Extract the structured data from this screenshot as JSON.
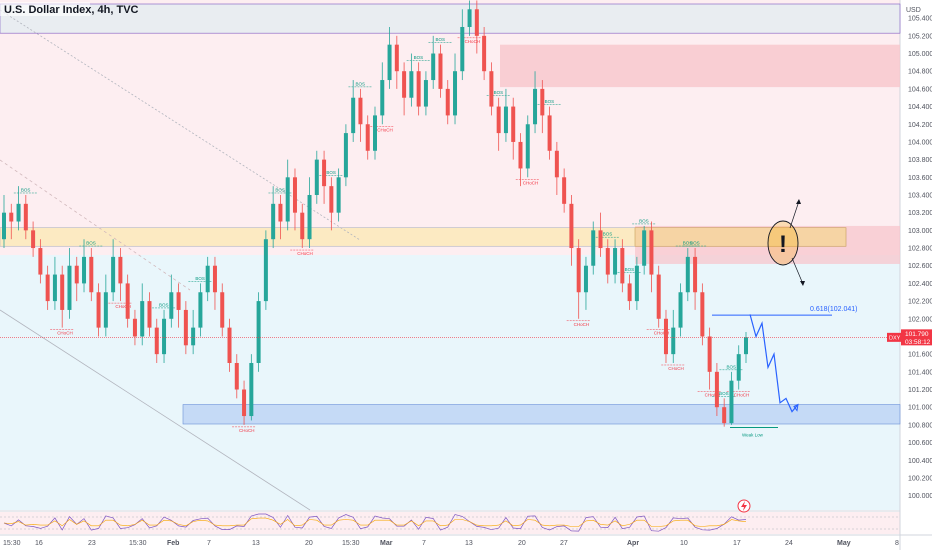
{
  "header": {
    "title": "U.S. Dollar Index, 4h, TVC"
  },
  "chart_data": {
    "type": "candlestick",
    "title": "U.S. Dollar Index, 4h, TVC",
    "currency": "USD",
    "symbol": "DXY",
    "y_ticks": [
      105.4,
      105.2,
      105.0,
      104.8,
      104.6,
      104.4,
      104.2,
      104.0,
      103.8,
      103.6,
      103.4,
      103.2,
      103.0,
      102.8,
      102.6,
      102.4,
      102.2,
      102.0,
      101.8,
      101.6,
      101.4,
      101.2,
      101.0,
      100.8,
      100.6,
      100.4,
      100.2,
      100.0
    ],
    "y_tick_labels": [
      "105.400",
      "105.200",
      "105.000",
      "104.800",
      "104.600",
      "104.400",
      "104.200",
      "104.000",
      "103.800",
      "103.600",
      "103.400",
      "103.200",
      "103.000",
      "102.800",
      "102.600",
      "102.400",
      "102.200",
      "102.000",
      "101.800",
      "101.600",
      "101.400",
      "101.200",
      "101.000",
      "100.800",
      "100.600",
      "100.400",
      "100.200",
      "100.000"
    ],
    "ylim": [
      99.86,
      105.56
    ],
    "x_labels": [
      "15:30",
      "16",
      "23",
      "15:30",
      "Feb",
      "7",
      "13",
      "20",
      "15:30",
      "Mar",
      "7",
      "13",
      "20",
      "27",
      "Apr",
      "10",
      "17",
      "24",
      "May",
      "8"
    ],
    "x_label_bold": [
      "Feb",
      "Mar",
      "Apr",
      "May"
    ],
    "last_price": {
      "value": 101.79,
      "label": "101.790",
      "timer": "03:58:12"
    },
    "fib_level": {
      "label": "0.618(102.041)",
      "value": 102.041
    },
    "swing_low": {
      "label": "Weak Low",
      "value": 100.77
    },
    "structure_labels": [
      "BOS",
      "CHoCH",
      "BOS",
      "CHoCH",
      "BOS",
      "BOS",
      "CHoCH",
      "BOS",
      "CHoCH",
      "BOS",
      "BOS",
      "CHoCH",
      "BOS",
      "BOS",
      "CHoCH",
      "BOS",
      "CHoCH",
      "BOS",
      "CHoCH",
      "BOS",
      "BOS",
      "CHoCH",
      "BOS",
      "CHoCH",
      "BOS",
      "CHoCH",
      "BOS",
      "BOS",
      "CHoCH",
      "BOS"
    ],
    "zones": [
      {
        "name": "top-supply",
        "low": 105.23,
        "high": 105.56
      },
      {
        "name": "supply-right",
        "low": 104.62,
        "high": 105.1
      },
      {
        "name": "yellow-band",
        "low": 102.82,
        "high": 103.03
      },
      {
        "name": "demand-blue",
        "low": 100.81,
        "high": 101.03
      }
    ],
    "candles": [
      [
        102.9,
        103.2,
        103.4,
        102.8
      ],
      [
        103.2,
        103.1,
        103.3,
        102.9
      ],
      [
        103.1,
        103.3,
        103.5,
        103.0
      ],
      [
        103.3,
        103.0,
        103.4,
        102.9
      ],
      [
        103.0,
        102.8,
        103.1,
        102.7
      ],
      [
        102.8,
        102.5,
        102.9,
        102.4
      ],
      [
        102.5,
        102.2,
        102.6,
        102.1
      ],
      [
        102.2,
        102.5,
        102.7,
        102.1
      ],
      [
        102.5,
        102.1,
        102.6,
        101.9
      ],
      [
        102.1,
        102.6,
        102.8,
        102.0
      ],
      [
        102.6,
        102.4,
        102.7,
        102.2
      ],
      [
        102.4,
        102.7,
        102.9,
        102.3
      ],
      [
        102.7,
        102.3,
        102.8,
        102.2
      ],
      [
        102.3,
        101.9,
        102.4,
        101.8
      ],
      [
        101.9,
        102.3,
        102.5,
        101.8
      ],
      [
        102.3,
        102.7,
        102.9,
        102.2
      ],
      [
        102.7,
        102.4,
        102.8,
        102.2
      ],
      [
        102.4,
        102.0,
        102.5,
        101.9
      ],
      [
        102.0,
        101.8,
        102.1,
        101.7
      ],
      [
        101.8,
        102.2,
        102.4,
        101.7
      ],
      [
        102.2,
        101.9,
        102.3,
        101.8
      ],
      [
        101.9,
        101.6,
        102.0,
        101.5
      ],
      [
        101.6,
        102.0,
        102.1,
        101.5
      ],
      [
        102.0,
        102.3,
        102.5,
        101.9
      ],
      [
        102.3,
        102.1,
        102.4,
        101.9
      ],
      [
        102.1,
        101.7,
        102.2,
        101.6
      ],
      [
        101.7,
        101.9,
        102.1,
        101.6
      ],
      [
        101.9,
        102.3,
        102.4,
        101.8
      ],
      [
        102.3,
        102.6,
        102.7,
        102.2
      ],
      [
        102.6,
        102.3,
        102.7,
        102.1
      ],
      [
        102.3,
        101.9,
        102.4,
        101.8
      ],
      [
        101.9,
        101.5,
        102.0,
        101.4
      ],
      [
        101.5,
        101.2,
        101.6,
        101.1
      ],
      [
        101.2,
        100.9,
        101.3,
        100.8
      ],
      [
        100.9,
        101.5,
        101.6,
        100.85
      ],
      [
        101.5,
        102.2,
        102.3,
        101.4
      ],
      [
        102.2,
        102.9,
        103.0,
        102.1
      ],
      [
        102.9,
        103.3,
        103.5,
        102.8
      ],
      [
        103.3,
        103.1,
        103.4,
        102.9
      ],
      [
        103.1,
        103.6,
        103.8,
        103.0
      ],
      [
        103.6,
        103.2,
        103.7,
        103.0
      ],
      [
        103.2,
        102.9,
        103.3,
        102.8
      ],
      [
        102.9,
        103.4,
        103.6,
        102.8
      ],
      [
        103.4,
        103.8,
        103.9,
        103.3
      ],
      [
        103.8,
        103.5,
        103.9,
        103.3
      ],
      [
        103.5,
        103.2,
        103.6,
        103.0
      ],
      [
        103.2,
        103.6,
        103.7,
        103.1
      ],
      [
        103.6,
        104.1,
        104.2,
        103.5
      ],
      [
        104.1,
        104.5,
        104.7,
        104.0
      ],
      [
        104.5,
        104.2,
        104.6,
        104.0
      ],
      [
        104.2,
        103.9,
        104.3,
        103.8
      ],
      [
        103.9,
        104.3,
        104.4,
        103.8
      ],
      [
        104.3,
        104.7,
        104.9,
        104.2
      ],
      [
        104.7,
        105.1,
        105.3,
        104.6
      ],
      [
        105.1,
        104.8,
        105.2,
        104.6
      ],
      [
        104.8,
        104.5,
        104.9,
        104.3
      ],
      [
        104.5,
        104.8,
        105.0,
        104.4
      ],
      [
        104.8,
        104.4,
        104.9,
        104.3
      ],
      [
        104.4,
        104.7,
        104.8,
        104.3
      ],
      [
        104.7,
        105.0,
        105.2,
        104.6
      ],
      [
        105.0,
        104.6,
        105.1,
        104.5
      ],
      [
        104.6,
        104.3,
        104.7,
        104.2
      ],
      [
        104.3,
        104.8,
        105.0,
        104.2
      ],
      [
        104.8,
        105.3,
        105.5,
        104.7
      ],
      [
        105.3,
        105.5,
        105.6,
        105.2
      ],
      [
        105.5,
        105.2,
        105.6,
        105.0
      ],
      [
        105.2,
        104.8,
        105.3,
        104.7
      ],
      [
        104.8,
        104.4,
        104.9,
        104.3
      ],
      [
        104.4,
        104.1,
        104.5,
        103.9
      ],
      [
        104.1,
        104.4,
        104.6,
        104.0
      ],
      [
        104.4,
        104.0,
        104.5,
        103.8
      ],
      [
        104.0,
        103.7,
        104.1,
        103.5
      ],
      [
        103.7,
        104.2,
        104.3,
        103.6
      ],
      [
        104.2,
        104.6,
        104.8,
        104.1
      ],
      [
        104.6,
        104.3,
        104.7,
        104.1
      ],
      [
        104.3,
        103.9,
        104.4,
        103.8
      ],
      [
        103.9,
        103.6,
        104.0,
        103.4
      ],
      [
        103.6,
        103.3,
        103.7,
        103.2
      ],
      [
        103.3,
        102.8,
        103.4,
        102.6
      ],
      [
        102.8,
        102.3,
        102.9,
        102.0
      ],
      [
        102.3,
        102.6,
        102.7,
        102.1
      ],
      [
        102.6,
        103.0,
        103.1,
        102.5
      ],
      [
        103.0,
        102.8,
        103.2,
        102.7
      ],
      [
        102.8,
        102.5,
        102.9,
        102.4
      ],
      [
        102.5,
        102.8,
        102.9,
        102.4
      ],
      [
        102.8,
        102.4,
        102.9,
        102.3
      ],
      [
        102.4,
        102.2,
        102.5,
        102.1
      ],
      [
        102.2,
        102.6,
        102.7,
        102.1
      ],
      [
        102.6,
        103.0,
        103.05,
        102.5
      ],
      [
        103.0,
        102.5,
        103.1,
        102.3
      ],
      [
        102.5,
        102.0,
        102.6,
        101.9
      ],
      [
        102.0,
        101.6,
        102.1,
        101.5
      ],
      [
        101.6,
        101.9,
        102.1,
        101.5
      ],
      [
        101.9,
        102.3,
        102.4,
        101.8
      ],
      [
        102.3,
        102.7,
        102.8,
        102.2
      ],
      [
        102.7,
        102.3,
        102.8,
        102.1
      ],
      [
        102.3,
        101.8,
        102.4,
        101.7
      ],
      [
        101.8,
        101.4,
        101.9,
        101.2
      ],
      [
        101.4,
        101.0,
        101.5,
        100.9
      ],
      [
        101.0,
        100.82,
        101.1,
        100.78
      ],
      [
        100.82,
        101.3,
        101.4,
        100.8
      ],
      [
        101.3,
        101.6,
        101.7,
        101.2
      ],
      [
        101.6,
        101.79,
        101.85,
        101.5
      ]
    ]
  },
  "projection_path": [
    102.05,
    101.8,
    101.95,
    101.45,
    101.6,
    101.05,
    101.1,
    100.95,
    101.03
  ],
  "indicator": {
    "name": "RSI"
  }
}
